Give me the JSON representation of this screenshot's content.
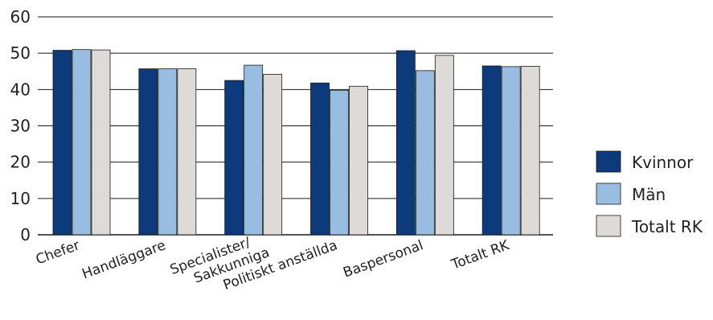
{
  "chart_data": {
    "type": "bar",
    "title": "",
    "xlabel": "",
    "ylabel": "",
    "ylim": [
      0,
      60
    ],
    "yticks": [
      0,
      10,
      20,
      30,
      40,
      50,
      60
    ],
    "grid": true,
    "legend_position": "right",
    "categories": [
      "Chefer",
      "Handläggare",
      "Specialister/\nSakkunniga",
      "Politiskt anställda",
      "Baspersonal",
      "Totalt RK"
    ],
    "series": [
      {
        "name": "Kvinnor",
        "color": "#0d3a7a",
        "values": [
          50.8,
          45.7,
          42.5,
          41.8,
          50.7,
          46.5
        ]
      },
      {
        "name": "Män",
        "color": "#99bde0",
        "values": [
          51.0,
          45.7,
          46.7,
          39.8,
          45.2,
          46.3
        ]
      },
      {
        "name": "Totalt RK",
        "color": "#dedad7",
        "values": [
          50.9,
          45.7,
          44.2,
          40.9,
          49.4,
          46.4
        ]
      }
    ]
  }
}
